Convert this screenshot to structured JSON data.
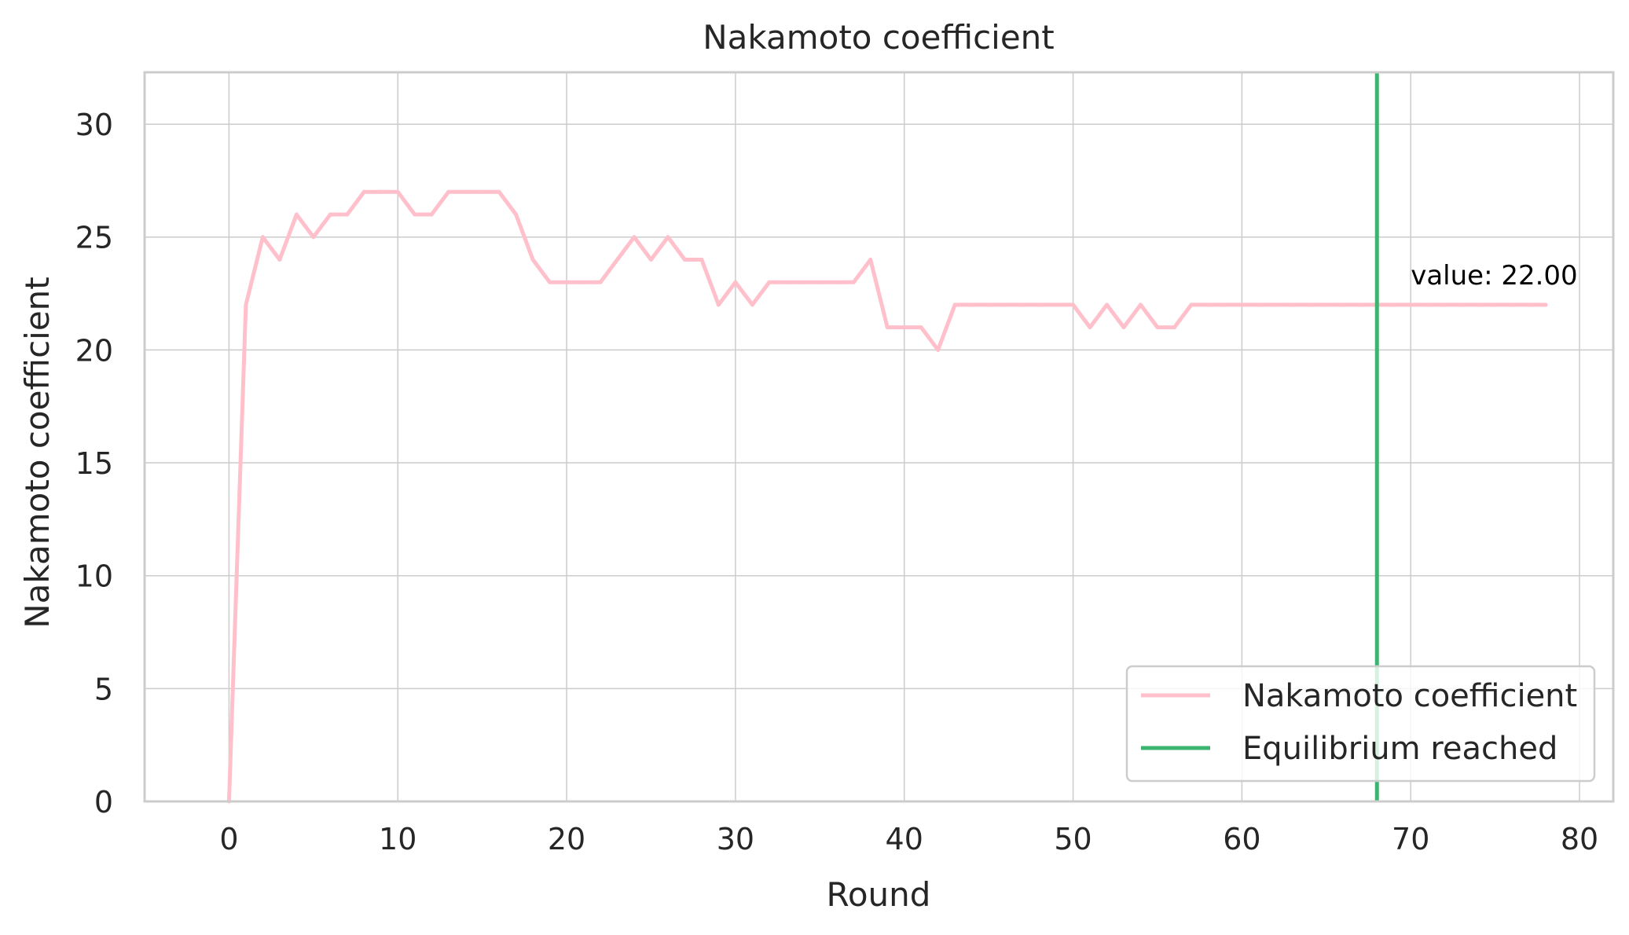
{
  "chart_data": {
    "type": "line",
    "title": "Nakamoto coefficient",
    "xlabel": "Round",
    "ylabel": "Nakamoto coefficient",
    "xlim": [
      -5,
      82
    ],
    "ylim": [
      0,
      32.3
    ],
    "xticks": [
      0,
      10,
      20,
      30,
      40,
      50,
      60,
      70,
      80
    ],
    "yticks": [
      0,
      5,
      10,
      15,
      20,
      25,
      30
    ],
    "grid": true,
    "legend_position": "lower-right",
    "series": [
      {
        "name": "Nakamoto coefficient",
        "color": "#ffc0cb",
        "x": [
          0,
          1,
          2,
          3,
          4,
          5,
          6,
          7,
          8,
          9,
          10,
          11,
          12,
          13,
          14,
          15,
          16,
          17,
          18,
          19,
          20,
          21,
          22,
          23,
          24,
          25,
          26,
          27,
          28,
          29,
          30,
          31,
          32,
          33,
          34,
          35,
          36,
          37,
          38,
          39,
          40,
          41,
          42,
          43,
          44,
          45,
          46,
          47,
          48,
          49,
          50,
          51,
          52,
          53,
          54,
          55,
          56,
          57,
          58,
          59,
          60,
          61,
          62,
          63,
          64,
          65,
          66,
          67,
          68,
          69,
          70,
          71,
          72,
          73,
          74,
          75,
          76,
          77,
          78
        ],
        "y": [
          0,
          22,
          25,
          24,
          26,
          25,
          26,
          26,
          27,
          27,
          27,
          26,
          26,
          27,
          27,
          27,
          27,
          26,
          24,
          23,
          23,
          23,
          23,
          24,
          25,
          24,
          25,
          24,
          24,
          22,
          23,
          22,
          23,
          23,
          23,
          23,
          23,
          23,
          24,
          21,
          21,
          21,
          20,
          22,
          22,
          22,
          22,
          22,
          22,
          22,
          22,
          21,
          22,
          21,
          22,
          21,
          21,
          22,
          22,
          22,
          22,
          22,
          22,
          22,
          22,
          22,
          22,
          22,
          22,
          22,
          22,
          22,
          22,
          22,
          22,
          22,
          22,
          22,
          22
        ]
      },
      {
        "name": "Equilibrium reached",
        "color": "#3cb371",
        "type": "vline",
        "x": 68
      }
    ],
    "annotation": {
      "text": "value: 22.00",
      "x": 70,
      "y": 22.9
    }
  }
}
